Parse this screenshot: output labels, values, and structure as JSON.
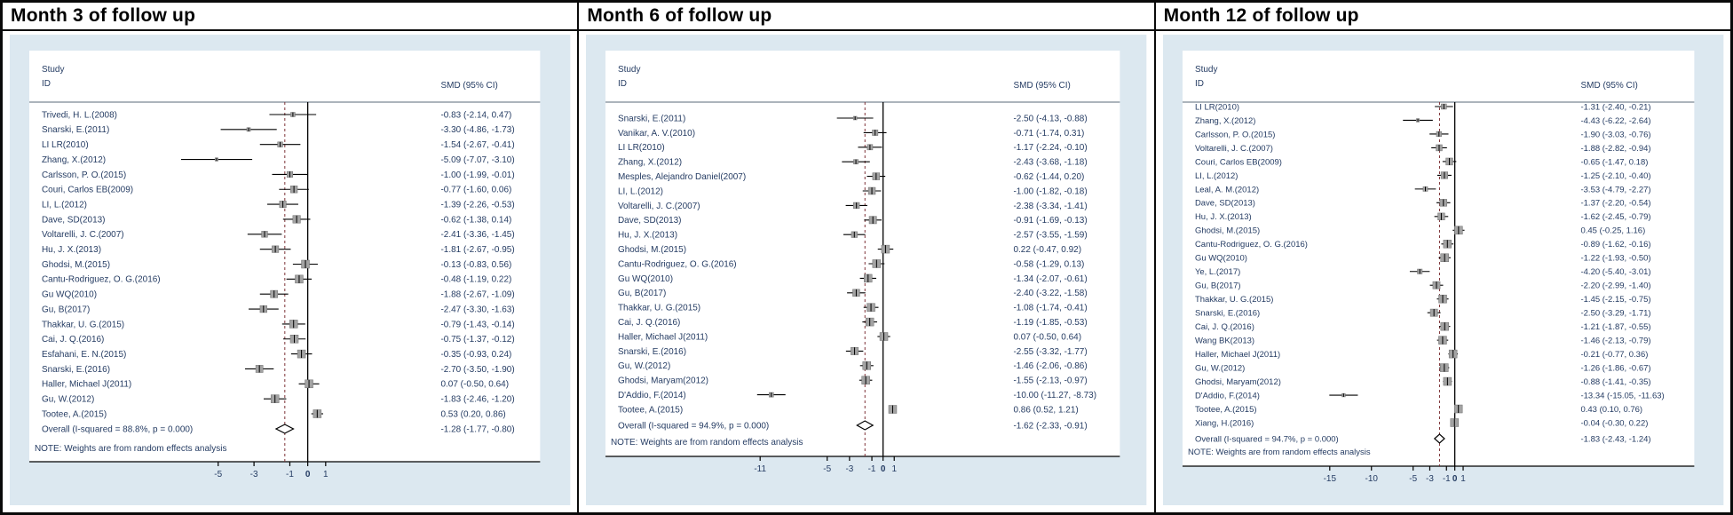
{
  "figure_title": "Forest plots of SMD at months 3, 6 and 12 of follow up",
  "colors": {
    "plot_background": "#dce8f0",
    "graph_region": "#ffffff",
    "text": "#253c63",
    "line": "#000000",
    "dashed_overall_line": "#7e3338",
    "marker_fill": "#a3a3a3",
    "border": "#0a0a0a"
  },
  "chart_data": [
    {
      "type": "forest",
      "title": "Month 3 of follow up",
      "col_study": "Study",
      "col_id": "ID",
      "col_smd": "SMD (95% CI)",
      "note": "NOTE: Weights are from random effects analysis",
      "axis_ticks": [
        -5,
        -3,
        -1,
        0,
        1
      ],
      "studies": [
        {
          "label": "Trivedi, H. L.(2008)",
          "smd": -0.83,
          "lo": -2.14,
          "hi": 0.47,
          "ci_text": "-0.83 (-2.14, 0.47)"
        },
        {
          "label": "Snarski, E.(2011)",
          "smd": -3.3,
          "lo": -4.86,
          "hi": -1.73,
          "ci_text": "-3.30 (-4.86, -1.73)"
        },
        {
          "label": "LI LR(2010)",
          "smd": -1.54,
          "lo": -2.67,
          "hi": -0.41,
          "ci_text": "-1.54 (-2.67, -0.41)"
        },
        {
          "label": "Zhang, X.(2012)",
          "smd": -5.09,
          "lo": -7.07,
          "hi": -3.1,
          "ci_text": "-5.09 (-7.07, -3.10)"
        },
        {
          "label": "Carlsson, P. O.(2015)",
          "smd": -1.0,
          "lo": -1.99,
          "hi": -0.01,
          "ci_text": "-1.00 (-1.99, -0.01)"
        },
        {
          "label": "Couri, Carlos EB(2009)",
          "smd": -0.77,
          "lo": -1.6,
          "hi": 0.06,
          "ci_text": "-0.77 (-1.60, 0.06)"
        },
        {
          "label": "LI, L.(2012)",
          "smd": -1.39,
          "lo": -2.26,
          "hi": -0.53,
          "ci_text": "-1.39 (-2.26, -0.53)"
        },
        {
          "label": "Dave, SD(2013)",
          "smd": -0.62,
          "lo": -1.38,
          "hi": 0.14,
          "ci_text": "-0.62 (-1.38, 0.14)"
        },
        {
          "label": "Voltarelli, J. C.(2007)",
          "smd": -2.41,
          "lo": -3.36,
          "hi": -1.45,
          "ci_text": "-2.41 (-3.36, -1.45)"
        },
        {
          "label": "Hu, J. X.(2013)",
          "smd": -1.81,
          "lo": -2.67,
          "hi": -0.95,
          "ci_text": "-1.81 (-2.67, -0.95)"
        },
        {
          "label": "Ghodsi, M.(2015)",
          "smd": -0.13,
          "lo": -0.83,
          "hi": 0.56,
          "ci_text": "-0.13 (-0.83, 0.56)"
        },
        {
          "label": "Cantu-Rodriguez, O. G.(2016)",
          "smd": -0.48,
          "lo": -1.19,
          "hi": 0.22,
          "ci_text": "-0.48 (-1.19, 0.22)"
        },
        {
          "label": "Gu WQ(2010)",
          "smd": -1.88,
          "lo": -2.67,
          "hi": -1.09,
          "ci_text": "-1.88 (-2.67, -1.09)"
        },
        {
          "label": "Gu, B(2017)",
          "smd": -2.47,
          "lo": -3.3,
          "hi": -1.63,
          "ci_text": "-2.47 (-3.30, -1.63)"
        },
        {
          "label": "Thakkar, U. G.(2015)",
          "smd": -0.79,
          "lo": -1.43,
          "hi": -0.14,
          "ci_text": "-0.79 (-1.43, -0.14)"
        },
        {
          "label": "Cai, J. Q.(2016)",
          "smd": -0.75,
          "lo": -1.37,
          "hi": -0.12,
          "ci_text": "-0.75 (-1.37, -0.12)"
        },
        {
          "label": "Esfahani, E. N.(2015)",
          "smd": -0.35,
          "lo": -0.93,
          "hi": 0.24,
          "ci_text": "-0.35 (-0.93, 0.24)"
        },
        {
          "label": "Snarski, E.(2016)",
          "smd": -2.7,
          "lo": -3.5,
          "hi": -1.9,
          "ci_text": "-2.70 (-3.50, -1.90)"
        },
        {
          "label": "Haller, Michael J(2011)",
          "smd": 0.07,
          "lo": -0.5,
          "hi": 0.64,
          "ci_text": "0.07 (-0.50, 0.64)"
        },
        {
          "label": "Gu, W.(2012)",
          "smd": -1.83,
          "lo": -2.46,
          "hi": -1.2,
          "ci_text": "-1.83 (-2.46, -1.20)"
        },
        {
          "label": "Tootee, A.(2015)",
          "smd": 0.53,
          "lo": 0.2,
          "hi": 0.86,
          "ci_text": "0.53 (0.20, 0.86)"
        }
      ],
      "overall": {
        "label": "Overall  (I-squared = 88.8%, p = 0.000)",
        "smd": -1.28,
        "lo": -1.77,
        "hi": -0.8,
        "ci_text": "-1.28 (-1.77, -0.80)"
      }
    },
    {
      "type": "forest",
      "title": "Month 6 of follow up",
      "col_study": "Study",
      "col_id": "ID",
      "col_smd": "SMD (95% CI)",
      "note": "NOTE: Weights are from random effects analysis",
      "axis_ticks": [
        -11,
        -5,
        -3,
        -1,
        0,
        1
      ],
      "studies": [
        {
          "label": "Snarski, E.(2011)",
          "smd": -2.5,
          "lo": -4.13,
          "hi": -0.88,
          "ci_text": "-2.50 (-4.13, -0.88)"
        },
        {
          "label": "Vanikar, A. V.(2010)",
          "smd": -0.71,
          "lo": -1.74,
          "hi": 0.31,
          "ci_text": "-0.71 (-1.74, 0.31)"
        },
        {
          "label": "LI LR(2010)",
          "smd": -1.17,
          "lo": -2.24,
          "hi": -0.1,
          "ci_text": "-1.17 (-2.24, -0.10)"
        },
        {
          "label": "Zhang, X.(2012)",
          "smd": -2.43,
          "lo": -3.68,
          "hi": -1.18,
          "ci_text": "-2.43 (-3.68, -1.18)"
        },
        {
          "label": "Mesples, Alejandro Daniel(2007)",
          "smd": -0.62,
          "lo": -1.44,
          "hi": 0.2,
          "ci_text": "-0.62 (-1.44, 0.20)"
        },
        {
          "label": "LI, L.(2012)",
          "smd": -1.0,
          "lo": -1.82,
          "hi": -0.18,
          "ci_text": "-1.00 (-1.82, -0.18)"
        },
        {
          "label": "Voltarelli, J. C.(2007)",
          "smd": -2.38,
          "lo": -3.34,
          "hi": -1.41,
          "ci_text": "-2.38 (-3.34, -1.41)"
        },
        {
          "label": "Dave, SD(2013)",
          "smd": -0.91,
          "lo": -1.69,
          "hi": -0.13,
          "ci_text": "-0.91 (-1.69, -0.13)"
        },
        {
          "label": "Hu, J. X.(2013)",
          "smd": -2.57,
          "lo": -3.55,
          "hi": -1.59,
          "ci_text": "-2.57 (-3.55, -1.59)"
        },
        {
          "label": "Ghodsi, M.(2015)",
          "smd": 0.22,
          "lo": -0.47,
          "hi": 0.92,
          "ci_text": "0.22 (-0.47, 0.92)"
        },
        {
          "label": "Cantu-Rodriguez, O. G.(2016)",
          "smd": -0.58,
          "lo": -1.29,
          "hi": 0.13,
          "ci_text": "-0.58 (-1.29, 0.13)"
        },
        {
          "label": "Gu WQ(2010)",
          "smd": -1.34,
          "lo": -2.07,
          "hi": -0.61,
          "ci_text": "-1.34 (-2.07, -0.61)"
        },
        {
          "label": "Gu, B(2017)",
          "smd": -2.4,
          "lo": -3.22,
          "hi": -1.58,
          "ci_text": "-2.40 (-3.22, -1.58)"
        },
        {
          "label": "Thakkar, U. G.(2015)",
          "smd": -1.08,
          "lo": -1.74,
          "hi": -0.41,
          "ci_text": "-1.08 (-1.74, -0.41)"
        },
        {
          "label": "Cai, J. Q.(2016)",
          "smd": -1.19,
          "lo": -1.85,
          "hi": -0.53,
          "ci_text": "-1.19 (-1.85, -0.53)"
        },
        {
          "label": "Haller, Michael J(2011)",
          "smd": 0.07,
          "lo": -0.5,
          "hi": 0.64,
          "ci_text": "0.07 (-0.50, 0.64)"
        },
        {
          "label": "Snarski, E.(2016)",
          "smd": -2.55,
          "lo": -3.32,
          "hi": -1.77,
          "ci_text": "-2.55 (-3.32, -1.77)"
        },
        {
          "label": "Gu, W.(2012)",
          "smd": -1.46,
          "lo": -2.06,
          "hi": -0.86,
          "ci_text": "-1.46 (-2.06, -0.86)"
        },
        {
          "label": "Ghodsi, Maryam(2012)",
          "smd": -1.55,
          "lo": -2.13,
          "hi": -0.97,
          "ci_text": "-1.55 (-2.13, -0.97)"
        },
        {
          "label": "D'Addio, F.(2014)",
          "smd": -10.0,
          "lo": -11.27,
          "hi": -8.73,
          "ci_text": "-10.00 (-11.27, -8.73)"
        },
        {
          "label": "Tootee, A.(2015)",
          "smd": 0.86,
          "lo": 0.52,
          "hi": 1.21,
          "ci_text": "0.86 (0.52, 1.21)"
        }
      ],
      "overall": {
        "label": "Overall  (I-squared = 94.9%, p = 0.000)",
        "smd": -1.62,
        "lo": -2.33,
        "hi": -0.91,
        "ci_text": "-1.62 (-2.33, -0.91)"
      }
    },
    {
      "type": "forest",
      "title": "Month 12 of follow up",
      "col_study": "Study",
      "col_id": "ID",
      "col_smd": "SMD (95% CI)",
      "note": "NOTE: Weights are from random effects analysis",
      "axis_ticks": [
        -15,
        -10,
        -5,
        -3,
        -1,
        0,
        1
      ],
      "studies": [
        {
          "label": "LI LR(2010)",
          "smd": -1.31,
          "lo": -2.4,
          "hi": -0.21,
          "ci_text": "-1.31 (-2.40, -0.21)"
        },
        {
          "label": "Zhang, X.(2012)",
          "smd": -4.43,
          "lo": -6.22,
          "hi": -2.64,
          "ci_text": "-4.43 (-6.22, -2.64)"
        },
        {
          "label": "Carlsson, P. O.(2015)",
          "smd": -1.9,
          "lo": -3.03,
          "hi": -0.76,
          "ci_text": "-1.90 (-3.03, -0.76)"
        },
        {
          "label": "Voltarelli, J. C.(2007)",
          "smd": -1.88,
          "lo": -2.82,
          "hi": -0.94,
          "ci_text": "-1.88 (-2.82, -0.94)"
        },
        {
          "label": "Couri, Carlos EB(2009)",
          "smd": -0.65,
          "lo": -1.47,
          "hi": 0.18,
          "ci_text": "-0.65 (-1.47, 0.18)"
        },
        {
          "label": "LI, L.(2012)",
          "smd": -1.25,
          "lo": -2.1,
          "hi": -0.4,
          "ci_text": "-1.25 (-2.10, -0.40)"
        },
        {
          "label": "Leal, A. M.(2012)",
          "smd": -3.53,
          "lo": -4.79,
          "hi": -2.27,
          "ci_text": "-3.53 (-4.79, -2.27)"
        },
        {
          "label": "Dave, SD(2013)",
          "smd": -1.37,
          "lo": -2.2,
          "hi": -0.54,
          "ci_text": "-1.37 (-2.20, -0.54)"
        },
        {
          "label": "Hu, J. X.(2013)",
          "smd": -1.62,
          "lo": -2.45,
          "hi": -0.79,
          "ci_text": "-1.62 (-2.45, -0.79)"
        },
        {
          "label": "Ghodsi, M.(2015)",
          "smd": 0.45,
          "lo": -0.25,
          "hi": 1.16,
          "ci_text": "0.45 (-0.25, 1.16)"
        },
        {
          "label": "Cantu-Rodriguez, O. G.(2016)",
          "smd": -0.89,
          "lo": -1.62,
          "hi": -0.16,
          "ci_text": "-0.89 (-1.62, -0.16)"
        },
        {
          "label": "Gu WQ(2010)",
          "smd": -1.22,
          "lo": -1.93,
          "hi": -0.5,
          "ci_text": "-1.22 (-1.93, -0.50)"
        },
        {
          "label": "Ye, L.(2017)",
          "smd": -4.2,
          "lo": -5.4,
          "hi": -3.01,
          "ci_text": "-4.20 (-5.40, -3.01)"
        },
        {
          "label": "Gu, B(2017)",
          "smd": -2.2,
          "lo": -2.99,
          "hi": -1.4,
          "ci_text": "-2.20 (-2.99, -1.40)"
        },
        {
          "label": "Thakkar, U. G.(2015)",
          "smd": -1.45,
          "lo": -2.15,
          "hi": -0.75,
          "ci_text": "-1.45 (-2.15, -0.75)"
        },
        {
          "label": "Snarski, E.(2016)",
          "smd": -2.5,
          "lo": -3.29,
          "hi": -1.71,
          "ci_text": "-2.50 (-3.29, -1.71)"
        },
        {
          "label": "Cai, J. Q.(2016)",
          "smd": -1.21,
          "lo": -1.87,
          "hi": -0.55,
          "ci_text": "-1.21 (-1.87, -0.55)"
        },
        {
          "label": "Wang BK(2013)",
          "smd": -1.46,
          "lo": -2.13,
          "hi": -0.79,
          "ci_text": "-1.46 (-2.13, -0.79)"
        },
        {
          "label": "Haller, Michael J(2011)",
          "smd": -0.21,
          "lo": -0.77,
          "hi": 0.36,
          "ci_text": "-0.21 (-0.77, 0.36)"
        },
        {
          "label": "Gu, W.(2012)",
          "smd": -1.26,
          "lo": -1.86,
          "hi": -0.67,
          "ci_text": "-1.26 (-1.86, -0.67)"
        },
        {
          "label": "Ghodsi, Maryam(2012)",
          "smd": -0.88,
          "lo": -1.41,
          "hi": -0.35,
          "ci_text": "-0.88 (-1.41, -0.35)"
        },
        {
          "label": "D'Addio, F.(2014)",
          "smd": -13.34,
          "lo": -15.05,
          "hi": -11.63,
          "ci_text": "-13.34 (-15.05, -11.63)"
        },
        {
          "label": "Tootee, A.(2015)",
          "smd": 0.43,
          "lo": 0.1,
          "hi": 0.76,
          "ci_text": "0.43 (0.10, 0.76)"
        },
        {
          "label": "Xiang, H.(2016)",
          "smd": -0.04,
          "lo": -0.3,
          "hi": 0.22,
          "ci_text": "-0.04 (-0.30, 0.22)"
        }
      ],
      "overall": {
        "label": "Overall  (I-squared = 94.7%, p = 0.000)",
        "smd": -1.83,
        "lo": -2.43,
        "hi": -1.24,
        "ci_text": "-1.83 (-2.43, -1.24)"
      }
    }
  ]
}
